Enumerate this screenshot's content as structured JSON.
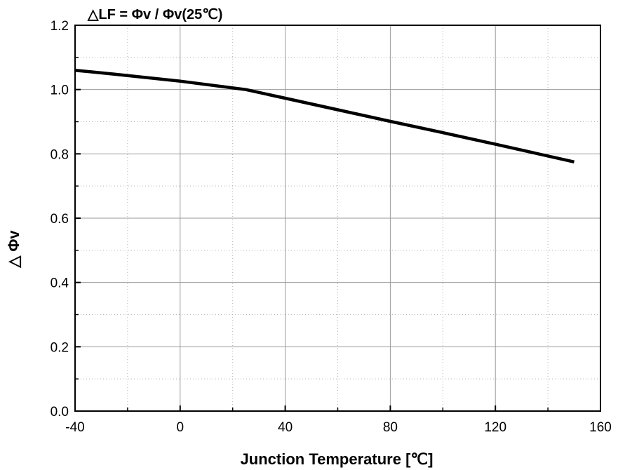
{
  "chart_data": {
    "type": "line",
    "title": "△LF = Φv / Φv(25℃)",
    "xlabel": "Junction Temperature [℃]",
    "ylabel": "△ Φv",
    "xlim": [
      -40,
      160
    ],
    "ylim": [
      0.0,
      1.2
    ],
    "xticks": [
      -40,
      0,
      40,
      80,
      120,
      160
    ],
    "xtick_labels": [
      "-40",
      "0",
      "40",
      "80",
      "120",
      "160"
    ],
    "yticks": [
      0.0,
      0.2,
      0.4,
      0.6,
      0.8,
      1.0,
      1.2
    ],
    "ytick_labels": [
      "0.0",
      "0.2",
      "0.4",
      "0.6",
      "0.8",
      "1.0",
      "1.2"
    ],
    "grid": true,
    "series": [
      {
        "x": [
          -40,
          -25,
          0,
          25,
          40,
          60,
          80,
          100,
          120,
          150
        ],
        "y": [
          1.06,
          1.048,
          1.026,
          1.0,
          0.973,
          0.937,
          0.901,
          0.866,
          0.83,
          0.775
        ],
        "color": "#000000"
      }
    ]
  }
}
